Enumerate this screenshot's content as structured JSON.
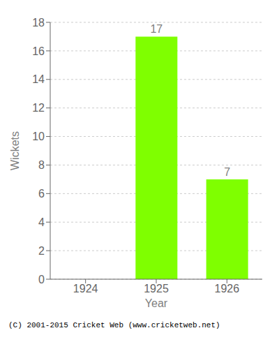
{
  "chart_data": {
    "type": "bar",
    "categories": [
      "1924",
      "1925",
      "1926"
    ],
    "values": [
      0,
      17,
      7
    ],
    "color": "#7fff00",
    "xlabel": "Year",
    "ylabel": "Wickets",
    "ylim": [
      0,
      18
    ],
    "yticks": [
      0,
      2,
      4,
      6,
      8,
      10,
      12,
      14,
      16,
      18
    ],
    "grid": true,
    "data_labels": true,
    "annotations": [
      "(C) 2001-2015 Cricket Web (www.cricketweb.net)"
    ]
  }
}
